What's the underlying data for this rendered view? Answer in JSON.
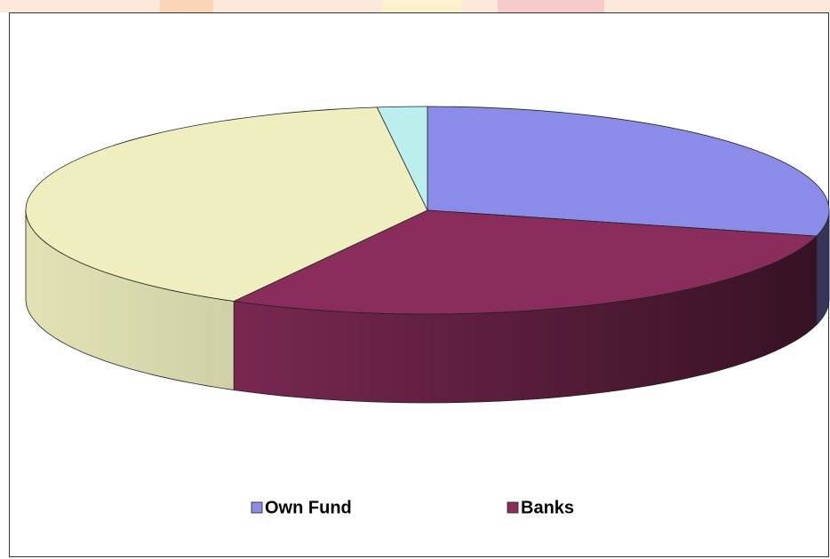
{
  "chart_data": {
    "type": "pie3d",
    "categories": [
      "Own Fund",
      "Banks",
      null,
      null
    ],
    "values": [
      29,
      29,
      40,
      2
    ],
    "colors": [
      "#8b8bea",
      "#8b2d5c",
      "#eeeebf",
      "#bdeeee"
    ],
    "legend": "bottom"
  }
}
